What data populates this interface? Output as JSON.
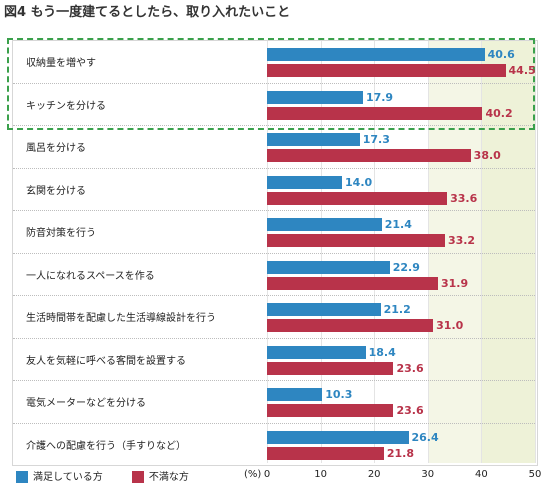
{
  "title": "図4 もう一度建てるとしたら、取り入れたいこと",
  "chart_data": {
    "type": "bar",
    "orientation": "horizontal",
    "categories": [
      "収納量を増やす",
      "キッチンを分ける",
      "風呂を分ける",
      "玄関を分ける",
      "防音対策を行う",
      "一人になれるスペースを作る",
      "生活時間帯を配慮した生活導線設計を行う",
      "友人を気軽に呼べる客間を設置する",
      "電気メーターなどを分ける",
      "介護への配慮を行う（手すりなど）"
    ],
    "series": [
      {
        "name": "満足している方",
        "color": "#2e86c1",
        "values": [
          40.6,
          17.9,
          17.3,
          14.0,
          21.4,
          22.9,
          21.2,
          18.4,
          10.3,
          26.4
        ]
      },
      {
        "name": "不満な方",
        "color": "#b8334a",
        "values": [
          44.5,
          40.2,
          38.0,
          33.6,
          33.2,
          31.9,
          31.0,
          23.6,
          23.6,
          21.8
        ]
      }
    ],
    "value_labels": [
      [
        "40.6",
        "17.9",
        "17.3",
        "14.0",
        "21.4",
        "22.9",
        "21.2",
        "18.4",
        "10.3",
        "26.4"
      ],
      [
        "44.5",
        "40.2",
        "38.0",
        "33.6",
        "33.2",
        "31.9",
        "31.0",
        "23.6",
        "23.6",
        "21.8"
      ]
    ],
    "x_unit": "(%)",
    "xlim": [
      0,
      50
    ],
    "x_ticks": [
      "0",
      "10",
      "20",
      "30",
      "40",
      "50"
    ],
    "shaded_ranges": [
      [
        30,
        40
      ],
      [
        40,
        50
      ]
    ],
    "highlighted_categories": [
      "キッチンを分ける",
      "風呂を分ける"
    ],
    "highlight_color": "#3aa04b",
    "legend": "bottom-left",
    "grid": true
  }
}
